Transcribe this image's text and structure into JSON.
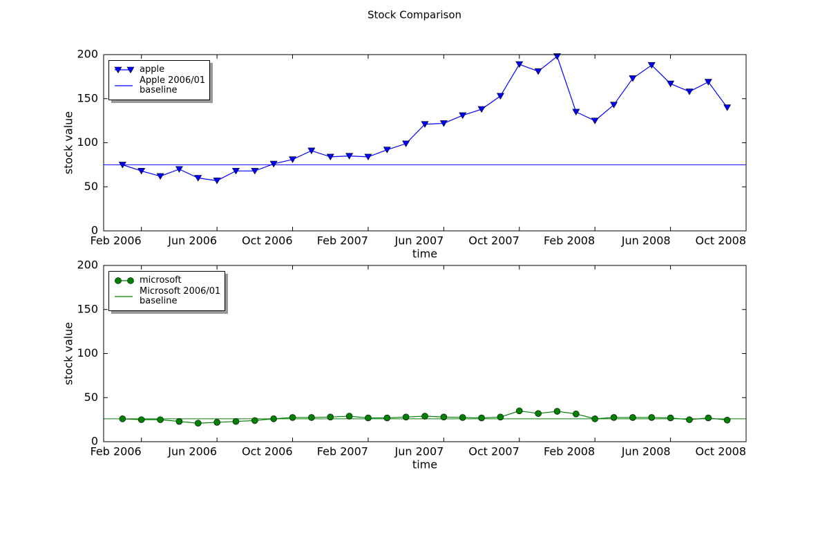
{
  "title": "Stock Comparison",
  "chart_data": [
    {
      "type": "line",
      "x": [
        "2006-01",
        "2006-02",
        "2006-03",
        "2006-04",
        "2006-05",
        "2006-06",
        "2006-07",
        "2006-08",
        "2006-09",
        "2006-10",
        "2006-11",
        "2006-12",
        "2007-01",
        "2007-02",
        "2007-03",
        "2007-04",
        "2007-05",
        "2007-06",
        "2007-07",
        "2007-08",
        "2007-09",
        "2007-10",
        "2007-11",
        "2007-12",
        "2008-01",
        "2008-02",
        "2008-03",
        "2008-04",
        "2008-05",
        "2008-06",
        "2008-07",
        "2008-08",
        "2008-09"
      ],
      "series": [
        {
          "name": "apple",
          "color": "#0000ff",
          "marker": "triangle-down",
          "values": [
            75,
            68,
            62,
            70,
            60,
            57,
            68,
            68,
            76,
            81,
            91,
            84,
            85,
            84,
            92,
            99,
            121,
            122,
            131,
            138,
            153,
            189,
            181,
            198,
            135,
            125,
            143,
            173,
            188,
            167,
            158,
            169,
            140
          ]
        }
      ],
      "hline": {
        "name": "Apple 2006/01\nbaseline",
        "value": 75,
        "color": "#0000ff"
      },
      "xlabel": "time",
      "ylabel": "stock value",
      "xlim": [
        "2005-12",
        "2008-10"
      ],
      "xticks": [
        {
          "value": "2006-02",
          "label": "Feb 2006"
        },
        {
          "value": "2006-06",
          "label": "Jun 2006"
        },
        {
          "value": "2006-10",
          "label": "Oct 2006"
        },
        {
          "value": "2007-02",
          "label": "Feb 2007"
        },
        {
          "value": "2007-06",
          "label": "Jun 2007"
        },
        {
          "value": "2007-10",
          "label": "Oct 2007"
        },
        {
          "value": "2008-02",
          "label": "Feb 2008"
        },
        {
          "value": "2008-06",
          "label": "Jun 2008"
        },
        {
          "value": "2008-10",
          "label": "Oct 2008"
        }
      ],
      "ylim": [
        0,
        200
      ],
      "yticks": [
        0,
        50,
        100,
        150,
        200
      ],
      "legend": "upper left"
    },
    {
      "type": "line",
      "x": [
        "2006-01",
        "2006-02",
        "2006-03",
        "2006-04",
        "2006-05",
        "2006-06",
        "2006-07",
        "2006-08",
        "2006-09",
        "2006-10",
        "2006-11",
        "2006-12",
        "2007-01",
        "2007-02",
        "2007-03",
        "2007-04",
        "2007-05",
        "2007-06",
        "2007-07",
        "2007-08",
        "2007-09",
        "2007-10",
        "2007-11",
        "2007-12",
        "2008-01",
        "2008-02",
        "2008-03",
        "2008-04",
        "2008-05",
        "2008-06",
        "2008-07",
        "2008-08",
        "2008-09"
      ],
      "series": [
        {
          "name": "microsoft",
          "color": "#008000",
          "marker": "circle",
          "values": [
            26,
            25,
            25,
            23,
            21,
            22,
            23,
            24,
            26,
            27.5,
            27.5,
            28,
            29,
            27,
            27,
            28,
            29,
            28,
            27.5,
            27,
            28,
            35,
            32,
            34.5,
            31.5,
            26,
            27.5,
            27.5,
            27.5,
            27,
            25,
            27,
            24.5
          ]
        }
      ],
      "hline": {
        "name": "Microsoft 2006/01\nbaseline",
        "value": 26,
        "color": "#008000"
      },
      "xlabel": "time",
      "ylabel": "stock value",
      "xlim": [
        "2005-12",
        "2008-10"
      ],
      "xticks": [
        {
          "value": "2006-02",
          "label": "Feb 2006"
        },
        {
          "value": "2006-06",
          "label": "Jun 2006"
        },
        {
          "value": "2006-10",
          "label": "Oct 2006"
        },
        {
          "value": "2007-02",
          "label": "Feb 2007"
        },
        {
          "value": "2007-06",
          "label": "Jun 2007"
        },
        {
          "value": "2007-10",
          "label": "Oct 2007"
        },
        {
          "value": "2008-02",
          "label": "Feb 2008"
        },
        {
          "value": "2008-06",
          "label": "Jun 2008"
        },
        {
          "value": "2008-10",
          "label": "Oct 2008"
        }
      ],
      "ylim": [
        0,
        200
      ],
      "yticks": [
        0,
        50,
        100,
        150,
        200
      ],
      "legend": "upper left"
    }
  ]
}
